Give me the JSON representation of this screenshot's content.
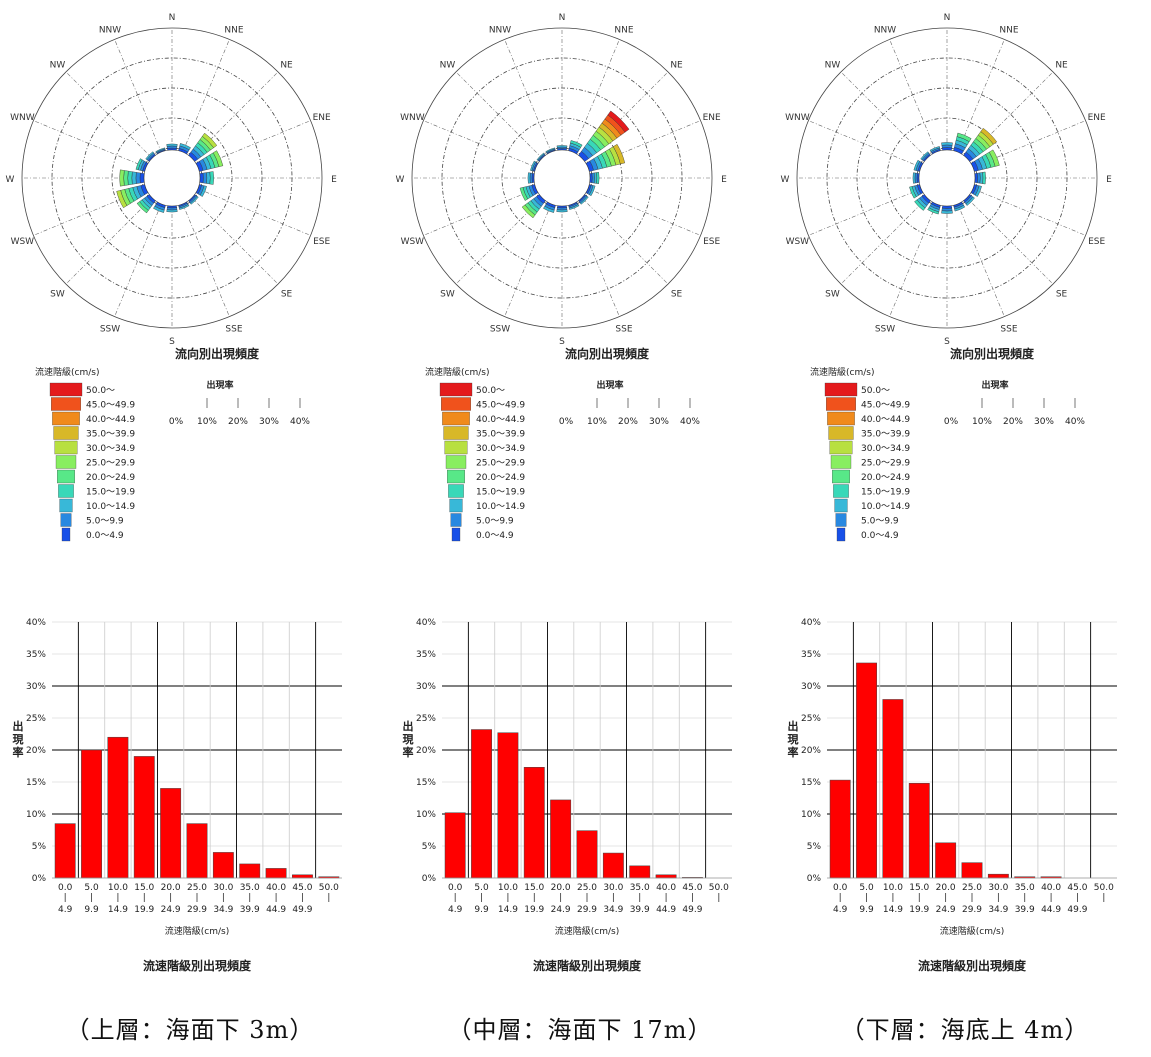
{
  "chart_data": [
    {
      "type": "rose",
      "title": "流向別出現頻度",
      "directions": [
        "N",
        "NNE",
        "NE",
        "ENE",
        "E",
        "ESE",
        "SE",
        "SSE",
        "S",
        "SSW",
        "SW",
        "WSW",
        "W",
        "WNW",
        "NW",
        "NNW"
      ],
      "frequency_pct": [
        2.0,
        2.5,
        9.0,
        8.0,
        4.5,
        2.5,
        1.5,
        1.5,
        2.0,
        2.5,
        5.0,
        9.5,
        8.0,
        3.0,
        1.5,
        1.0
      ],
      "speed_legend_title": "流速階級(cm/s)",
      "speed_classes": [
        "50.0〜",
        "45.0〜49.9",
        "40.0〜44.9",
        "35.0〜39.9",
        "30.0〜34.9",
        "25.0〜29.9",
        "20.0〜24.9",
        "15.0〜19.9",
        "10.0〜14.9",
        "5.0〜9.9",
        "0.0〜4.9"
      ],
      "ratio_title": "出現率",
      "ratio_ticks": [
        "0%",
        "10%",
        "20%",
        "30%",
        "40%"
      ],
      "radial_max_pct": 40
    },
    {
      "type": "bar",
      "title": "流速階級別出現頻度",
      "xlabel": "流速階級(cm/s)",
      "ylabel": "出現率",
      "categories": [
        [
          "0.0",
          "4.9"
        ],
        [
          "5.0",
          "9.9"
        ],
        [
          "10.0",
          "14.9"
        ],
        [
          "15.0",
          "19.9"
        ],
        [
          "20.0",
          "24.9"
        ],
        [
          "25.0",
          "29.9"
        ],
        [
          "30.0",
          "34.9"
        ],
        [
          "35.0",
          "39.9"
        ],
        [
          "40.0",
          "44.9"
        ],
        [
          "45.0",
          "49.9"
        ],
        [
          "50.0",
          ""
        ]
      ],
      "values": [
        8.5,
        20.0,
        22.0,
        19.0,
        14.0,
        8.5,
        4.0,
        2.2,
        1.5,
        0.5,
        0.2
      ],
      "ylim": [
        0,
        40
      ],
      "yticks": [
        "0%",
        "5%",
        "10%",
        "15%",
        "20%",
        "25%",
        "30%",
        "35%",
        "40%"
      ]
    },
    {
      "type": "rose",
      "title": "流向別出現頻度",
      "directions": [
        "N",
        "NNE",
        "NE",
        "ENE",
        "E",
        "ESE",
        "SE",
        "SSE",
        "S",
        "SSW",
        "SW",
        "WSW",
        "W",
        "WNW",
        "NW",
        "NNW"
      ],
      "frequency_pct": [
        1.5,
        3.5,
        18.0,
        12.0,
        3.0,
        2.0,
        1.5,
        1.5,
        2.0,
        2.5,
        7.0,
        5.0,
        2.0,
        1.5,
        1.0,
        1.0
      ],
      "speed_legend_title": "流速階級(cm/s)",
      "speed_classes": [
        "50.0〜",
        "45.0〜49.9",
        "40.0〜44.9",
        "35.0〜39.9",
        "30.0〜34.9",
        "25.0〜29.9",
        "20.0〜24.9",
        "15.0〜19.9",
        "10.0〜14.9",
        "5.0〜9.9",
        "0.0〜4.9"
      ],
      "ratio_title": "出現率",
      "ratio_ticks": [
        "0%",
        "10%",
        "20%",
        "30%",
        "40%"
      ],
      "radial_max_pct": 40
    },
    {
      "type": "bar",
      "title": "流速階級別出現頻度",
      "xlabel": "流速階級(cm/s)",
      "ylabel": "出現率",
      "categories": [
        [
          "0.0",
          "4.9"
        ],
        [
          "5.0",
          "9.9"
        ],
        [
          "10.0",
          "14.9"
        ],
        [
          "15.0",
          "19.9"
        ],
        [
          "20.0",
          "24.9"
        ],
        [
          "25.0",
          "29.9"
        ],
        [
          "30.0",
          "34.9"
        ],
        [
          "35.0",
          "39.9"
        ],
        [
          "40.0",
          "44.9"
        ],
        [
          "45.0",
          "49.9"
        ],
        [
          "50.0",
          ""
        ]
      ],
      "values": [
        10.2,
        23.2,
        22.7,
        17.3,
        12.2,
        7.4,
        3.9,
        1.9,
        0.5,
        0.1,
        0.0
      ],
      "ylim": [
        0,
        40
      ],
      "yticks": [
        "0%",
        "5%",
        "10%",
        "15%",
        "20%",
        "25%",
        "30%",
        "35%",
        "40%"
      ]
    },
    {
      "type": "rose",
      "title": "流向別出現頻度",
      "directions": [
        "N",
        "NNE",
        "NE",
        "ENE",
        "E",
        "ESE",
        "SE",
        "SSE",
        "S",
        "SSW",
        "SW",
        "WSW",
        "W",
        "WNW",
        "NW",
        "NNW"
      ],
      "frequency_pct": [
        2.5,
        6.0,
        11.0,
        8.5,
        3.5,
        2.5,
        2.0,
        2.0,
        2.5,
        3.0,
        4.0,
        3.5,
        2.0,
        2.0,
        1.5,
        1.5
      ],
      "speed_legend_title": "流速階級(cm/s)",
      "speed_classes": [
        "50.0〜",
        "45.0〜49.9",
        "40.0〜44.9",
        "35.0〜39.9",
        "30.0〜34.9",
        "25.0〜29.9",
        "20.0〜24.9",
        "15.0〜19.9",
        "10.0〜14.9",
        "5.0〜9.9",
        "0.0〜4.9"
      ],
      "ratio_title": "出現率",
      "ratio_ticks": [
        "0%",
        "10%",
        "20%",
        "30%",
        "40%"
      ],
      "radial_max_pct": 40
    },
    {
      "type": "bar",
      "title": "流速階級別出現頻度",
      "xlabel": "流速階級(cm/s)",
      "ylabel": "出現率",
      "categories": [
        [
          "0.0",
          "4.9"
        ],
        [
          "5.0",
          "9.9"
        ],
        [
          "10.0",
          "14.9"
        ],
        [
          "15.0",
          "19.9"
        ],
        [
          "20.0",
          "24.9"
        ],
        [
          "25.0",
          "29.9"
        ],
        [
          "30.0",
          "34.9"
        ],
        [
          "35.0",
          "39.9"
        ],
        [
          "40.0",
          "44.9"
        ],
        [
          "45.0",
          "49.9"
        ],
        [
          "50.0",
          ""
        ]
      ],
      "values": [
        15.3,
        33.6,
        27.9,
        14.8,
        5.5,
        2.4,
        0.6,
        0.2,
        0.2,
        0.0,
        0.0
      ],
      "ylim": [
        0,
        40
      ],
      "yticks": [
        "0%",
        "5%",
        "10%",
        "15%",
        "20%",
        "25%",
        "30%",
        "35%",
        "40%"
      ]
    }
  ],
  "captions": [
    "（上層：海面下 3m）",
    "（中層：海面下 17m）",
    "（下層：海底上 4m）"
  ],
  "colors": {
    "speed_class_colors": [
      "#e41a1c",
      "#f0521c",
      "#f08a1c",
      "#d8b828",
      "#b8e040",
      "#88ee60",
      "#58e888",
      "#38d8b8",
      "#38b8d8",
      "#2888e0",
      "#1850e8"
    ],
    "bar": "#ff0000",
    "grid": "#000000",
    "grid_light": "#bbbbbb"
  }
}
